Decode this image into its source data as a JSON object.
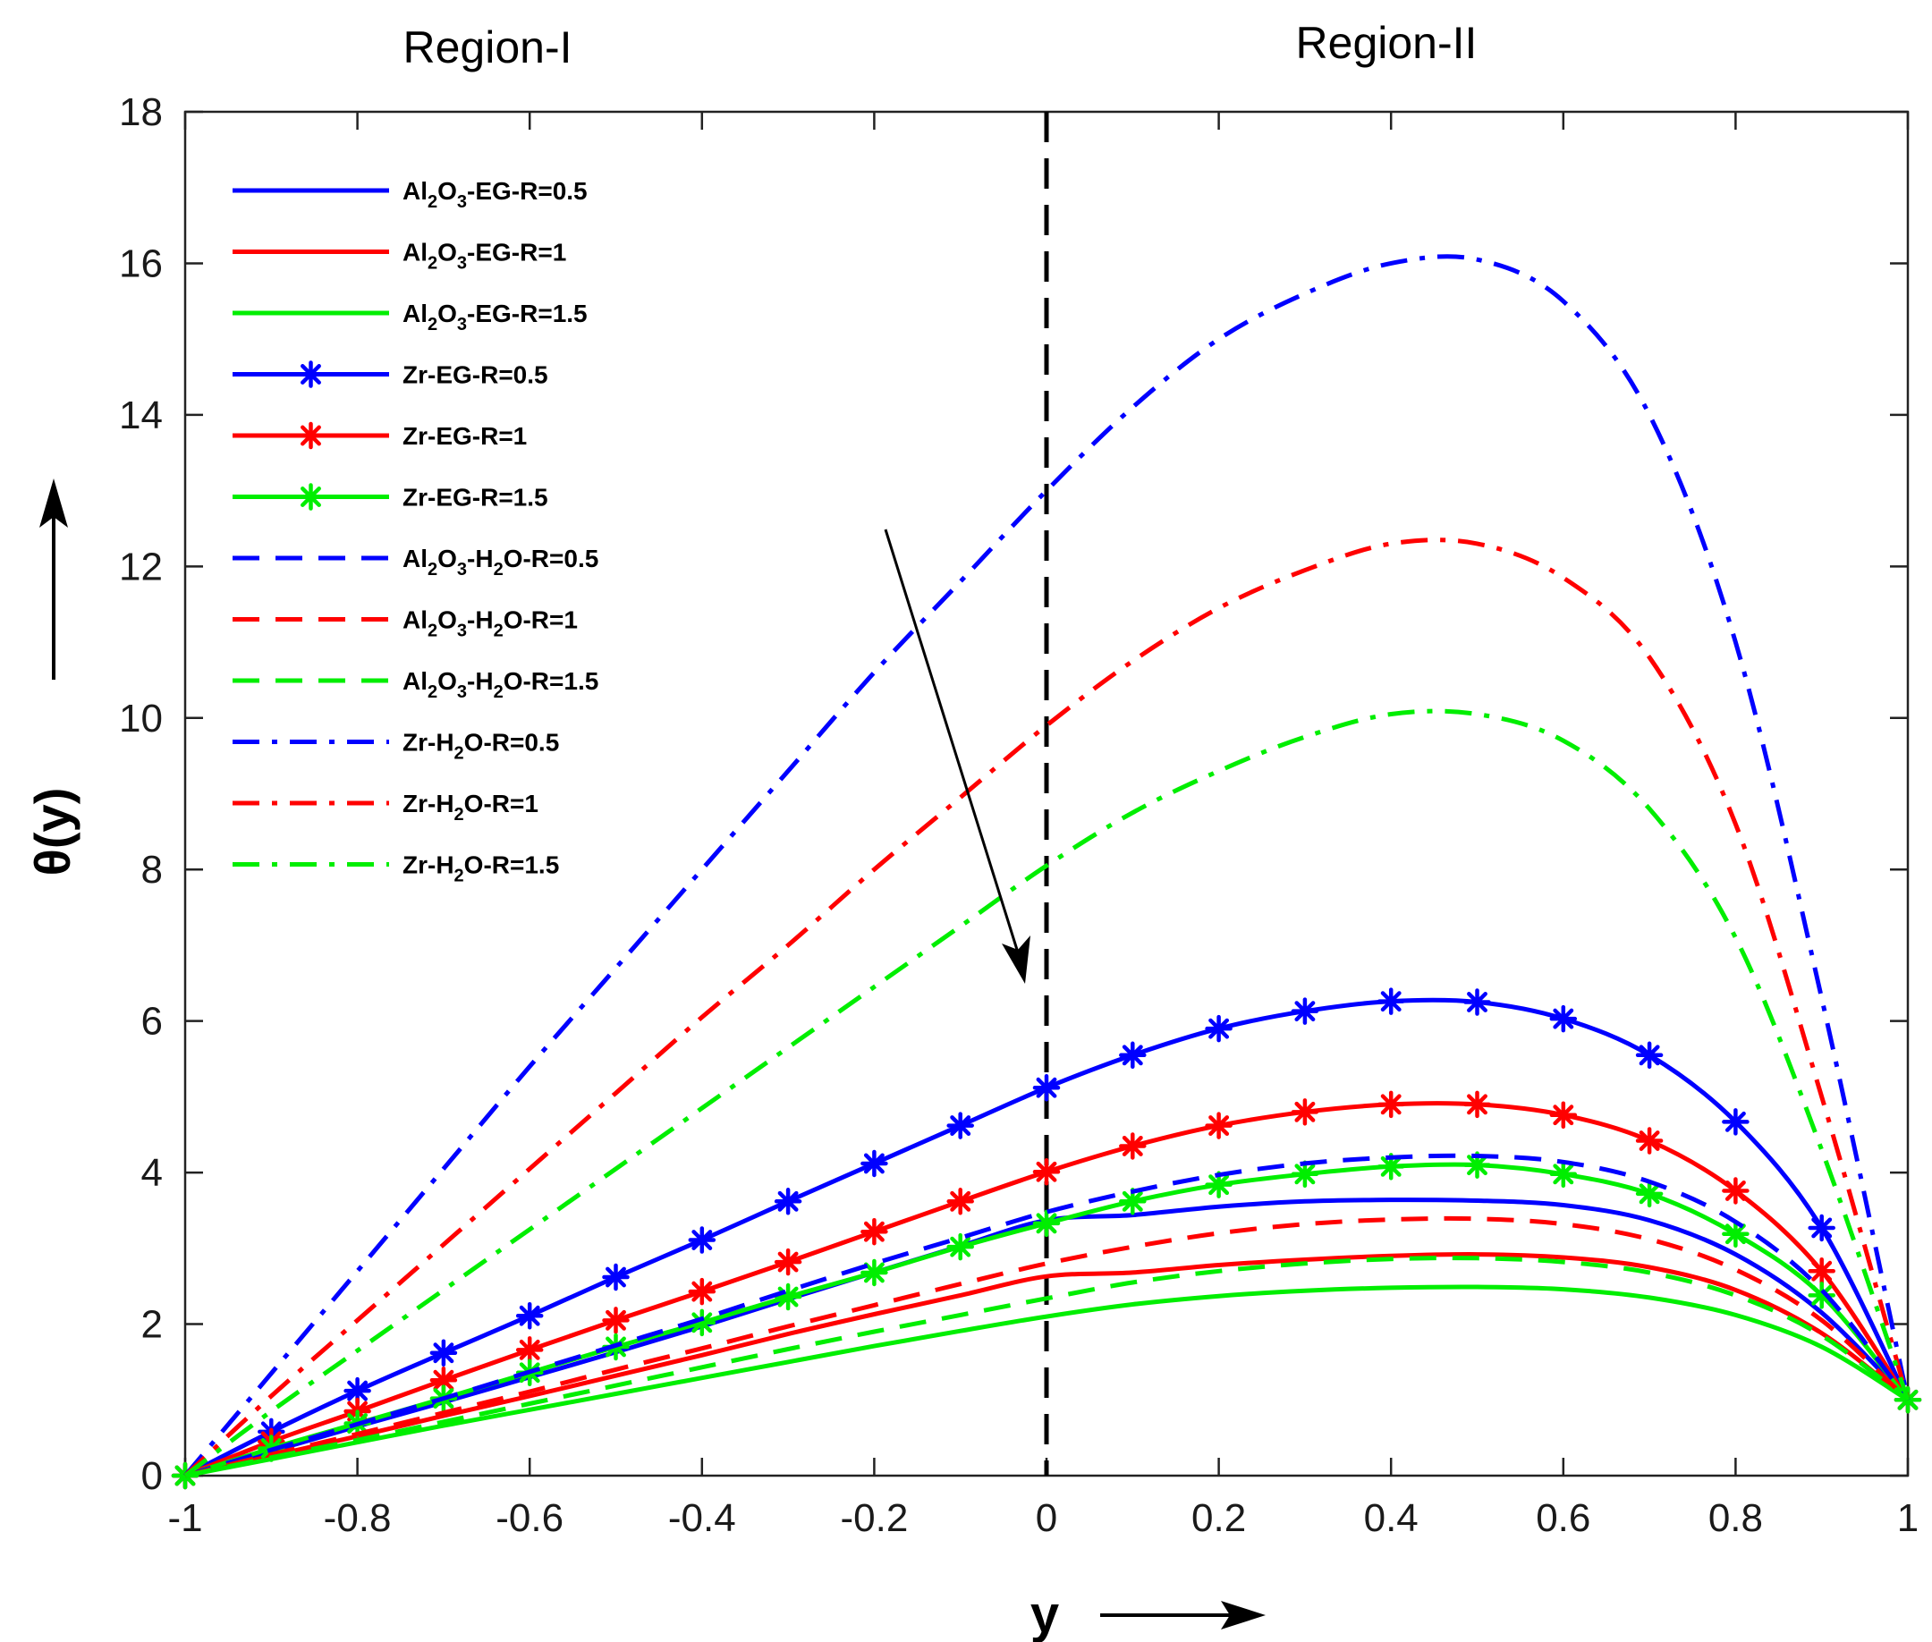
{
  "chart_data": {
    "type": "line",
    "xlabel": "y",
    "ylabel": "θ(y)",
    "xlim": [
      -1,
      1
    ],
    "ylim": [
      0,
      18
    ],
    "xticks": [
      -1,
      -0.8,
      -0.6,
      -0.4,
      -0.2,
      0,
      0.2,
      0.4,
      0.6,
      0.8,
      1
    ],
    "xtick_labels": [
      "-1",
      "-0.8",
      "-0.6",
      "-0.4",
      "-0.2",
      "0",
      "0.2",
      "0.4",
      "0.6",
      "0.8",
      "1"
    ],
    "yticks": [
      0,
      2,
      4,
      6,
      8,
      10,
      12,
      14,
      16,
      18
    ],
    "ytick_labels": [
      "0",
      "2",
      "4",
      "6",
      "8",
      "10",
      "12",
      "14",
      "16",
      "18"
    ],
    "regions": [
      {
        "label": "Region-I",
        "x_range": [
          -1,
          0
        ]
      },
      {
        "label": "Region-II",
        "x_range": [
          0,
          1
        ]
      }
    ],
    "divider_x": 0,
    "annotation": "arrow indicates decreasing θ(y) with increasing R",
    "legend_position": "top-left",
    "grid": false,
    "x": [
      -1,
      -0.9,
      -0.8,
      -0.7,
      -0.6,
      -0.5,
      -0.4,
      -0.3,
      -0.2,
      -0.1,
      0,
      0.1,
      0.2,
      0.3,
      0.4,
      0.5,
      0.6,
      0.7,
      0.8,
      0.9,
      1
    ],
    "series": [
      {
        "name": "Al2O3-EG-R=0.5",
        "label_parts": [
          [
            "Al",
            ""
          ],
          [
            "2",
            "sub"
          ],
          [
            "O",
            ""
          ],
          [
            "3",
            "sub"
          ],
          [
            "-EG-R=0.5",
            ""
          ]
        ],
        "color": "#0000ff",
        "style": "solid",
        "marker": false,
        "values": [
          0,
          0.32,
          0.65,
          0.97,
          1.3,
          1.63,
          1.97,
          2.33,
          2.68,
          3.03,
          3.37,
          3.44,
          3.55,
          3.62,
          3.64,
          3.63,
          3.57,
          3.37,
          2.92,
          2.15,
          1.0
        ]
      },
      {
        "name": "Al2O3-EG-R=1",
        "label_parts": [
          [
            "Al",
            ""
          ],
          [
            "2",
            "sub"
          ],
          [
            "O",
            ""
          ],
          [
            "3",
            "sub"
          ],
          [
            "-EG-R=1",
            ""
          ]
        ],
        "color": "#ff0000",
        "style": "solid",
        "marker": false,
        "values": [
          0,
          0.26,
          0.52,
          0.79,
          1.05,
          1.32,
          1.59,
          1.87,
          2.13,
          2.38,
          2.63,
          2.68,
          2.78,
          2.85,
          2.9,
          2.92,
          2.88,
          2.75,
          2.45,
          1.88,
          1.0
        ]
      },
      {
        "name": "Al2O3-EG-R=1.5",
        "label_parts": [
          [
            "Al",
            ""
          ],
          [
            "2",
            "sub"
          ],
          [
            "O",
            ""
          ],
          [
            "3",
            "sub"
          ],
          [
            "-EG-R=1.5",
            ""
          ]
        ],
        "color": "#00ee00",
        "style": "solid",
        "marker": false,
        "values": [
          0,
          0.22,
          0.44,
          0.66,
          0.87,
          1.08,
          1.29,
          1.5,
          1.71,
          1.91,
          2.1,
          2.26,
          2.37,
          2.44,
          2.48,
          2.49,
          2.46,
          2.35,
          2.12,
          1.7,
          1.0
        ]
      },
      {
        "name": "Zr-EG-R=0.5",
        "label_parts": [
          [
            "Zr-EG-R=0.5",
            ""
          ]
        ],
        "color": "#0000ff",
        "style": "solid",
        "marker": true,
        "values": [
          0,
          0.58,
          1.12,
          1.62,
          2.11,
          2.62,
          3.11,
          3.62,
          4.12,
          4.62,
          5.12,
          5.55,
          5.9,
          6.13,
          6.26,
          6.25,
          6.03,
          5.55,
          4.67,
          3.27,
          1.0
        ]
      },
      {
        "name": "Zr-EG-R=1",
        "label_parts": [
          [
            "Zr-EG-R=1",
            ""
          ]
        ],
        "color": "#ff0000",
        "style": "solid",
        "marker": true,
        "values": [
          0,
          0.45,
          0.85,
          1.26,
          1.66,
          2.05,
          2.43,
          2.82,
          3.22,
          3.62,
          4.01,
          4.35,
          4.62,
          4.8,
          4.9,
          4.9,
          4.76,
          4.42,
          3.76,
          2.7,
          1.0
        ]
      },
      {
        "name": "Zr-EG-R=1.5",
        "label_parts": [
          [
            "Zr-EG-R=1.5",
            ""
          ]
        ],
        "color": "#00ee00",
        "style": "solid",
        "marker": true,
        "values": [
          0,
          0.36,
          0.69,
          1.02,
          1.36,
          1.7,
          2.02,
          2.36,
          2.68,
          3.02,
          3.33,
          3.62,
          3.84,
          3.98,
          4.08,
          4.1,
          3.98,
          3.72,
          3.19,
          2.38,
          1.0
        ]
      },
      {
        "name": "Al2O3-H2O-R=0.5",
        "label_parts": [
          [
            "Al",
            ""
          ],
          [
            "2",
            "sub"
          ],
          [
            "O",
            ""
          ],
          [
            "3",
            "sub"
          ],
          [
            "-H",
            ""
          ],
          [
            "2",
            "sub"
          ],
          [
            "O-R=0.5",
            ""
          ]
        ],
        "color": "#0000ff",
        "style": "dashed",
        "marker": false,
        "values": [
          0,
          0.34,
          0.68,
          1.02,
          1.37,
          1.72,
          2.07,
          2.44,
          2.8,
          3.14,
          3.48,
          3.75,
          3.97,
          4.12,
          4.2,
          4.22,
          4.14,
          3.88,
          3.35,
          2.45,
          1.0
        ]
      },
      {
        "name": "Al2O3-H2O-R=1",
        "label_parts": [
          [
            "Al",
            ""
          ],
          [
            "2",
            "sub"
          ],
          [
            "O",
            ""
          ],
          [
            "3",
            "sub"
          ],
          [
            "-H",
            ""
          ],
          [
            "2",
            "sub"
          ],
          [
            "O-R=1",
            ""
          ]
        ],
        "color": "#ff0000",
        "style": "dashed",
        "marker": false,
        "values": [
          0,
          0.28,
          0.55,
          0.83,
          1.11,
          1.4,
          1.68,
          1.97,
          2.25,
          2.53,
          2.8,
          3.02,
          3.2,
          3.32,
          3.38,
          3.39,
          3.32,
          3.12,
          2.72,
          2.05,
          1.0
        ]
      },
      {
        "name": "Al2O3-H2O-R=1.5",
        "label_parts": [
          [
            "Al",
            ""
          ],
          [
            "2",
            "sub"
          ],
          [
            "O",
            ""
          ],
          [
            "3",
            "sub"
          ],
          [
            "-H",
            ""
          ],
          [
            "2",
            "sub"
          ],
          [
            "O-R=1.5",
            ""
          ]
        ],
        "color": "#00ee00",
        "style": "dashed",
        "marker": false,
        "values": [
          0,
          0.24,
          0.47,
          0.71,
          0.95,
          1.19,
          1.43,
          1.67,
          1.9,
          2.12,
          2.34,
          2.55,
          2.7,
          2.8,
          2.86,
          2.87,
          2.82,
          2.68,
          2.38,
          1.85,
          1.0
        ]
      },
      {
        "name": "Zr-H2O-R=0.5",
        "label_parts": [
          [
            "Zr-H",
            ""
          ],
          [
            "2",
            "sub"
          ],
          [
            "O-R=0.5",
            ""
          ]
        ],
        "color": "#0000ff",
        "style": "dashdot",
        "marker": false,
        "values": [
          0,
          1.35,
          2.7,
          4.05,
          5.4,
          6.7,
          8.0,
          9.3,
          10.6,
          11.8,
          13.0,
          14.1,
          15.0,
          15.6,
          16.0,
          16.05,
          15.5,
          14.0,
          11.0,
          6.3,
          1.0
        ]
      },
      {
        "name": "Zr-H2O-R=1",
        "label_parts": [
          [
            "Zr-H",
            ""
          ],
          [
            "2",
            "sub"
          ],
          [
            "O-R=1",
            ""
          ]
        ],
        "color": "#ff0000",
        "style": "dashdot",
        "marker": false,
        "values": [
          0,
          1.05,
          2.05,
          3.05,
          4.05,
          5.05,
          6.05,
          7.0,
          8.0,
          8.95,
          9.9,
          10.75,
          11.45,
          11.95,
          12.3,
          12.3,
          11.85,
          10.8,
          8.6,
          5.0,
          1.0
        ]
      },
      {
        "name": "Zr-H2O-R=1.5",
        "label_parts": [
          [
            "Zr-H",
            ""
          ],
          [
            "2",
            "sub"
          ],
          [
            "O-R=1.5",
            ""
          ]
        ],
        "color": "#00ee00",
        "style": "dashdot",
        "marker": false,
        "values": [
          0,
          0.85,
          1.65,
          2.45,
          3.25,
          4.05,
          4.85,
          5.65,
          6.45,
          7.25,
          8.05,
          8.75,
          9.3,
          9.75,
          10.05,
          10.05,
          9.7,
          8.8,
          7.1,
          4.3,
          1.0
        ]
      }
    ]
  }
}
